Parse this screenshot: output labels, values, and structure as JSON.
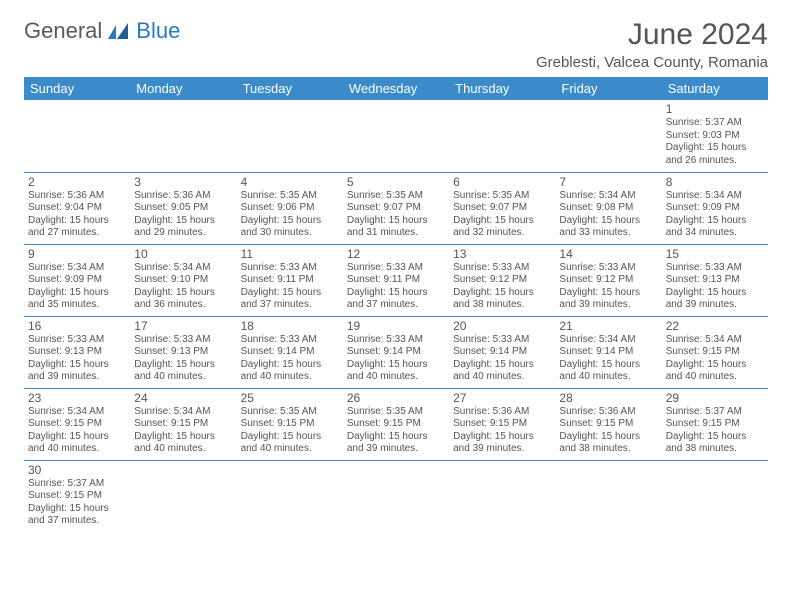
{
  "logo": {
    "text1": "General",
    "text2": "Blue"
  },
  "title": "June 2024",
  "subtitle": "Greblesti, Valcea County, Romania",
  "header_bg": "#3b8bca",
  "day_names": [
    "Sunday",
    "Monday",
    "Tuesday",
    "Wednesday",
    "Thursday",
    "Friday",
    "Saturday"
  ],
  "weeks": [
    [
      null,
      null,
      null,
      null,
      null,
      null,
      {
        "n": "1",
        "sr": "5:37 AM",
        "ss": "9:03 PM",
        "dl": "15 hours and 26 minutes."
      }
    ],
    [
      {
        "n": "2",
        "sr": "5:36 AM",
        "ss": "9:04 PM",
        "dl": "15 hours and 27 minutes."
      },
      {
        "n": "3",
        "sr": "5:36 AM",
        "ss": "9:05 PM",
        "dl": "15 hours and 29 minutes."
      },
      {
        "n": "4",
        "sr": "5:35 AM",
        "ss": "9:06 PM",
        "dl": "15 hours and 30 minutes."
      },
      {
        "n": "5",
        "sr": "5:35 AM",
        "ss": "9:07 PM",
        "dl": "15 hours and 31 minutes."
      },
      {
        "n": "6",
        "sr": "5:35 AM",
        "ss": "9:07 PM",
        "dl": "15 hours and 32 minutes."
      },
      {
        "n": "7",
        "sr": "5:34 AM",
        "ss": "9:08 PM",
        "dl": "15 hours and 33 minutes."
      },
      {
        "n": "8",
        "sr": "5:34 AM",
        "ss": "9:09 PM",
        "dl": "15 hours and 34 minutes."
      }
    ],
    [
      {
        "n": "9",
        "sr": "5:34 AM",
        "ss": "9:09 PM",
        "dl": "15 hours and 35 minutes."
      },
      {
        "n": "10",
        "sr": "5:34 AM",
        "ss": "9:10 PM",
        "dl": "15 hours and 36 minutes."
      },
      {
        "n": "11",
        "sr": "5:33 AM",
        "ss": "9:11 PM",
        "dl": "15 hours and 37 minutes."
      },
      {
        "n": "12",
        "sr": "5:33 AM",
        "ss": "9:11 PM",
        "dl": "15 hours and 37 minutes."
      },
      {
        "n": "13",
        "sr": "5:33 AM",
        "ss": "9:12 PM",
        "dl": "15 hours and 38 minutes."
      },
      {
        "n": "14",
        "sr": "5:33 AM",
        "ss": "9:12 PM",
        "dl": "15 hours and 39 minutes."
      },
      {
        "n": "15",
        "sr": "5:33 AM",
        "ss": "9:13 PM",
        "dl": "15 hours and 39 minutes."
      }
    ],
    [
      {
        "n": "16",
        "sr": "5:33 AM",
        "ss": "9:13 PM",
        "dl": "15 hours and 39 minutes."
      },
      {
        "n": "17",
        "sr": "5:33 AM",
        "ss": "9:13 PM",
        "dl": "15 hours and 40 minutes."
      },
      {
        "n": "18",
        "sr": "5:33 AM",
        "ss": "9:14 PM",
        "dl": "15 hours and 40 minutes."
      },
      {
        "n": "19",
        "sr": "5:33 AM",
        "ss": "9:14 PM",
        "dl": "15 hours and 40 minutes."
      },
      {
        "n": "20",
        "sr": "5:33 AM",
        "ss": "9:14 PM",
        "dl": "15 hours and 40 minutes."
      },
      {
        "n": "21",
        "sr": "5:34 AM",
        "ss": "9:14 PM",
        "dl": "15 hours and 40 minutes."
      },
      {
        "n": "22",
        "sr": "5:34 AM",
        "ss": "9:15 PM",
        "dl": "15 hours and 40 minutes."
      }
    ],
    [
      {
        "n": "23",
        "sr": "5:34 AM",
        "ss": "9:15 PM",
        "dl": "15 hours and 40 minutes."
      },
      {
        "n": "24",
        "sr": "5:34 AM",
        "ss": "9:15 PM",
        "dl": "15 hours and 40 minutes."
      },
      {
        "n": "25",
        "sr": "5:35 AM",
        "ss": "9:15 PM",
        "dl": "15 hours and 40 minutes."
      },
      {
        "n": "26",
        "sr": "5:35 AM",
        "ss": "9:15 PM",
        "dl": "15 hours and 39 minutes."
      },
      {
        "n": "27",
        "sr": "5:36 AM",
        "ss": "9:15 PM",
        "dl": "15 hours and 39 minutes."
      },
      {
        "n": "28",
        "sr": "5:36 AM",
        "ss": "9:15 PM",
        "dl": "15 hours and 38 minutes."
      },
      {
        "n": "29",
        "sr": "5:37 AM",
        "ss": "9:15 PM",
        "dl": "15 hours and 38 minutes."
      }
    ],
    [
      {
        "n": "30",
        "sr": "5:37 AM",
        "ss": "9:15 PM",
        "dl": "15 hours and 37 minutes."
      },
      null,
      null,
      null,
      null,
      null,
      null
    ]
  ],
  "labels": {
    "sunrise": "Sunrise: ",
    "sunset": "Sunset: ",
    "daylight": "Daylight: "
  }
}
